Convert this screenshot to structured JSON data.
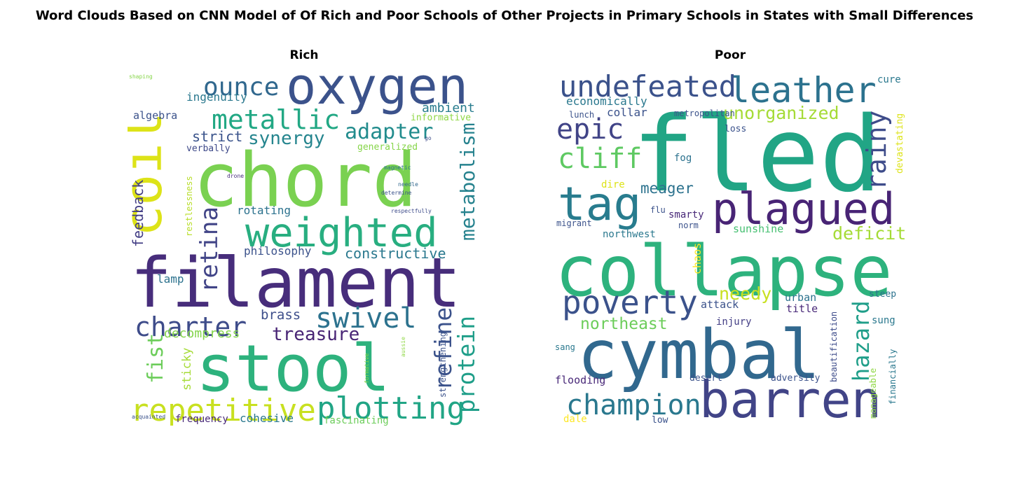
{
  "chart_data": {
    "type": "wordcloud",
    "title": "Word Clouds Based on CNN Model of Of Rich and Poor Schools of Other Projects in Primary Schools in States with Small Differences",
    "panels": [
      {
        "id": "rich",
        "title": "Rich",
        "words": [
          {
            "text": "filament",
            "color": "#472d7b",
            "rel": 1.0
          },
          {
            "text": "chord",
            "color": "#7ad151",
            "rel": 0.95
          },
          {
            "text": "stool",
            "color": "#2db27d",
            "rel": 0.9
          },
          {
            "text": "oxygen",
            "color": "#3b528b",
            "rel": 0.82
          },
          {
            "text": "coil",
            "color": "#dde318",
            "rel": 0.78
          },
          {
            "text": "weighted",
            "color": "#28ae80",
            "rel": 0.66
          },
          {
            "text": "repetitive",
            "color": "#c8e020",
            "rel": 0.52
          },
          {
            "text": "plotting",
            "color": "#21a585",
            "rel": 0.52
          },
          {
            "text": "metallic",
            "color": "#22a884",
            "rel": 0.45
          },
          {
            "text": "charter",
            "color": "#3e4c8a",
            "rel": 0.45
          },
          {
            "text": "swivel",
            "color": "#2c728e",
            "rel": 0.45
          },
          {
            "text": "ounce",
            "color": "#31688e",
            "rel": 0.42
          },
          {
            "text": "retina",
            "color": "#414487",
            "rel": 0.42
          },
          {
            "text": "protein",
            "color": "#1f9e89",
            "rel": 0.4
          },
          {
            "text": "refine",
            "color": "#3b528b",
            "rel": 0.4
          },
          {
            "text": "metabolism",
            "color": "#26828e",
            "rel": 0.38
          },
          {
            "text": "fist",
            "color": "#6ccd5a",
            "rel": 0.38
          },
          {
            "text": "adapter",
            "color": "#228c8d",
            "rel": 0.36
          },
          {
            "text": "synergy",
            "color": "#25858e",
            "rel": 0.34
          },
          {
            "text": "treasure",
            "color": "#482475",
            "rel": 0.33
          },
          {
            "text": "feedback",
            "color": "#433e85",
            "rel": 0.22
          },
          {
            "text": "constructive",
            "color": "#2a788e",
            "rel": 0.22
          },
          {
            "text": "strict",
            "color": "#3a538b",
            "rel": 0.22
          },
          {
            "text": "brass",
            "color": "#3d4e8a",
            "rel": 0.22
          },
          {
            "text": "decompress",
            "color": "#84d44b",
            "rel": 0.22
          },
          {
            "text": "sticky",
            "color": "#a5db36",
            "rel": 0.22
          },
          {
            "text": "ambient",
            "color": "#287c8e",
            "rel": 0.2
          },
          {
            "text": "ingenuity",
            "color": "#2a788e",
            "rel": 0.2
          },
          {
            "text": "philosophy",
            "color": "#3b528b",
            "rel": 0.2
          },
          {
            "text": "rotating",
            "color": "#2c728e",
            "rel": 0.2
          },
          {
            "text": "cohesive",
            "color": "#2a788e",
            "rel": 0.18
          },
          {
            "text": "lamp",
            "color": "#2c728e",
            "rel": 0.18
          },
          {
            "text": "algebra",
            "color": "#3b528b",
            "rel": 0.16
          },
          {
            "text": "frequency",
            "color": "#482878",
            "rel": 0.16
          },
          {
            "text": "fascinating",
            "color": "#6ccd5a",
            "rel": 0.16
          },
          {
            "text": "verbally",
            "color": "#3e4989",
            "rel": 0.15
          },
          {
            "text": "generalized",
            "color": "#86d549",
            "rel": 0.15
          },
          {
            "text": "informative",
            "color": "#8fd744",
            "rel": 0.15
          },
          {
            "text": "restlessness",
            "color": "#b8de29",
            "rel": 0.14
          },
          {
            "text": "strengthening",
            "color": "#3b528b",
            "rel": 0.14
          },
          {
            "text": "needle",
            "color": "#31688e",
            "rel": 0.1
          },
          {
            "text": "magnetic",
            "color": "#2c728e",
            "rel": 0.1
          },
          {
            "text": "determine",
            "color": "#3b528b",
            "rel": 0.1
          },
          {
            "text": "respectfully",
            "color": "#3e4c8a",
            "rel": 0.1
          },
          {
            "text": "drone",
            "color": "#472d7b",
            "rel": 0.1
          },
          {
            "text": "acquainted",
            "color": "#3b528b",
            "rel": 0.1
          },
          {
            "text": "formative",
            "color": "#86d549",
            "rel": 0.1
          },
          {
            "text": "aussie",
            "color": "#8fd744",
            "rel": 0.1
          },
          {
            "text": "shaping",
            "color": "#86d549",
            "rel": 0.1
          },
          {
            "text": "go",
            "color": "#3e4c8a",
            "rel": 0.1
          }
        ]
      },
      {
        "id": "poor",
        "title": "Poor",
        "words": [
          {
            "text": "fled",
            "color": "#21a585",
            "rel": 1.0
          },
          {
            "text": "collapse",
            "color": "#2db27d",
            "rel": 0.9
          },
          {
            "text": "cymbal",
            "color": "#31688e",
            "rel": 0.88
          },
          {
            "text": "barren",
            "color": "#414487",
            "rel": 0.68
          },
          {
            "text": "plagued",
            "color": "#482475",
            "rel": 0.62
          },
          {
            "text": "tag",
            "color": "#287c8e",
            "rel": 0.58
          },
          {
            "text": "leather",
            "color": "#2c728e",
            "rel": 0.45
          },
          {
            "text": "undefeated",
            "color": "#3b528b",
            "rel": 0.42
          },
          {
            "text": "poverty",
            "color": "#3b528b",
            "rel": 0.45
          },
          {
            "text": "champion",
            "color": "#2a788e",
            "rel": 0.38
          },
          {
            "text": "epic",
            "color": "#414487",
            "rel": 0.38
          },
          {
            "text": "cliff",
            "color": "#5ec962",
            "rel": 0.38
          },
          {
            "text": "rainy",
            "color": "#3e4c8a",
            "rel": 0.36
          },
          {
            "text": "hazard",
            "color": "#1f9e89",
            "rel": 0.34
          },
          {
            "text": "unorganized",
            "color": "#a5db36",
            "rel": 0.25
          },
          {
            "text": "deficit",
            "color": "#a5db36",
            "rel": 0.25
          },
          {
            "text": "needy",
            "color": "#c8e020",
            "rel": 0.25
          },
          {
            "text": "northeast",
            "color": "#6ccd5a",
            "rel": 0.24
          },
          {
            "text": "meager",
            "color": "#2c728e",
            "rel": 0.22
          },
          {
            "text": "economically",
            "color": "#2a788e",
            "rel": 0.16
          },
          {
            "text": "collar",
            "color": "#3b528b",
            "rel": 0.16
          },
          {
            "text": "chaos",
            "color": "#fde725",
            "rel": 0.16
          },
          {
            "text": "sunshine",
            "color": "#44bf70",
            "rel": 0.16
          },
          {
            "text": "attack",
            "color": "#3b528b",
            "rel": 0.16
          },
          {
            "text": "urban",
            "color": "#2c728e",
            "rel": 0.16
          },
          {
            "text": "title",
            "color": "#482878",
            "rel": 0.16
          },
          {
            "text": "injury",
            "color": "#433e85",
            "rel": 0.16
          },
          {
            "text": "flooding",
            "color": "#482878",
            "rel": 0.16
          },
          {
            "text": "fog",
            "color": "#2c728e",
            "rel": 0.16
          },
          {
            "text": "smarty",
            "color": "#482878",
            "rel": 0.16
          },
          {
            "text": "northwest",
            "color": "#2a788e",
            "rel": 0.14
          },
          {
            "text": "dire",
            "color": "#dde318",
            "rel": 0.14
          },
          {
            "text": "cure",
            "color": "#2a788e",
            "rel": 0.14
          },
          {
            "text": "devastating",
            "color": "#dde318",
            "rel": 0.14
          },
          {
            "text": "beautification",
            "color": "#3e4c8a",
            "rel": 0.12
          },
          {
            "text": "manageable",
            "color": "#8fd744",
            "rel": 0.12
          },
          {
            "text": "financially",
            "color": "#2a788e",
            "rel": 0.12
          },
          {
            "text": "sung",
            "color": "#2a788e",
            "rel": 0.14
          },
          {
            "text": "steep",
            "color": "#2c728e",
            "rel": 0.13
          },
          {
            "text": "adversity",
            "color": "#3b528b",
            "rel": 0.13
          },
          {
            "text": "desert",
            "color": "#3b528b",
            "rel": 0.13
          },
          {
            "text": "dale",
            "color": "#fde725",
            "rel": 0.14
          },
          {
            "text": "low",
            "color": "#3b528b",
            "rel": 0.13
          },
          {
            "text": "sang",
            "color": "#2a788e",
            "rel": 0.12
          },
          {
            "text": "loss",
            "color": "#3b528b",
            "rel": 0.13
          },
          {
            "text": "metropolitan",
            "color": "#3b528b",
            "rel": 0.13
          },
          {
            "text": "lunch",
            "color": "#3b528b",
            "rel": 0.13
          },
          {
            "text": "flu",
            "color": "#3b528b",
            "rel": 0.13
          },
          {
            "text": "norm",
            "color": "#3b528b",
            "rel": 0.13
          },
          {
            "text": "migrant",
            "color": "#3b528b",
            "rel": 0.13
          }
        ]
      }
    ]
  }
}
